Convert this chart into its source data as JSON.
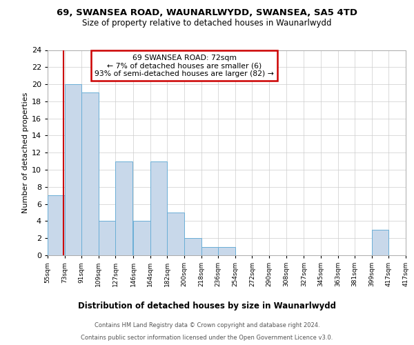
{
  "title1": "69, SWANSEA ROAD, WAUNARLWYDD, SWANSEA, SA5 4TD",
  "title2": "Size of property relative to detached houses in Waunarlwydd",
  "xlabel": "Distribution of detached houses by size in Waunarlwydd",
  "ylabel": "Number of detached properties",
  "footnote1": "Contains HM Land Registry data © Crown copyright and database right 2024.",
  "footnote2": "Contains public sector information licensed under the Open Government Licence v3.0.",
  "annotation_line1": "69 SWANSEA ROAD: 72sqm",
  "annotation_line2": "← 7% of detached houses are smaller (6)",
  "annotation_line3": "93% of semi-detached houses are larger (82) →",
  "property_size": 72,
  "bar_color": "#c8d8ea",
  "bar_edge_color": "#6aaed6",
  "ref_line_color": "#cc0000",
  "annotation_box_color": "#cc0000",
  "background_color": "#ffffff",
  "grid_color": "#cccccc",
  "categories": [
    "55sqm",
    "73sqm",
    "91sqm",
    "109sqm",
    "127sqm",
    "146sqm",
    "164sqm",
    "182sqm",
    "200sqm",
    "218sqm",
    "236sqm",
    "254sqm",
    "272sqm",
    "290sqm",
    "308sqm",
    "327sqm",
    "345sqm",
    "363sqm",
    "381sqm",
    "399sqm",
    "417sqm"
  ],
  "bin_edges": [
    55,
    73,
    91,
    109,
    127,
    146,
    164,
    182,
    200,
    218,
    236,
    254,
    272,
    290,
    308,
    327,
    345,
    363,
    381,
    399,
    417
  ],
  "values": [
    7,
    20,
    19,
    4,
    11,
    4,
    11,
    5,
    2,
    1,
    1,
    0,
    0,
    0,
    0,
    0,
    0,
    0,
    0,
    3
  ],
  "ylim": [
    0,
    24
  ],
  "yticks": [
    0,
    2,
    4,
    6,
    8,
    10,
    12,
    14,
    16,
    18,
    20,
    22,
    24
  ]
}
